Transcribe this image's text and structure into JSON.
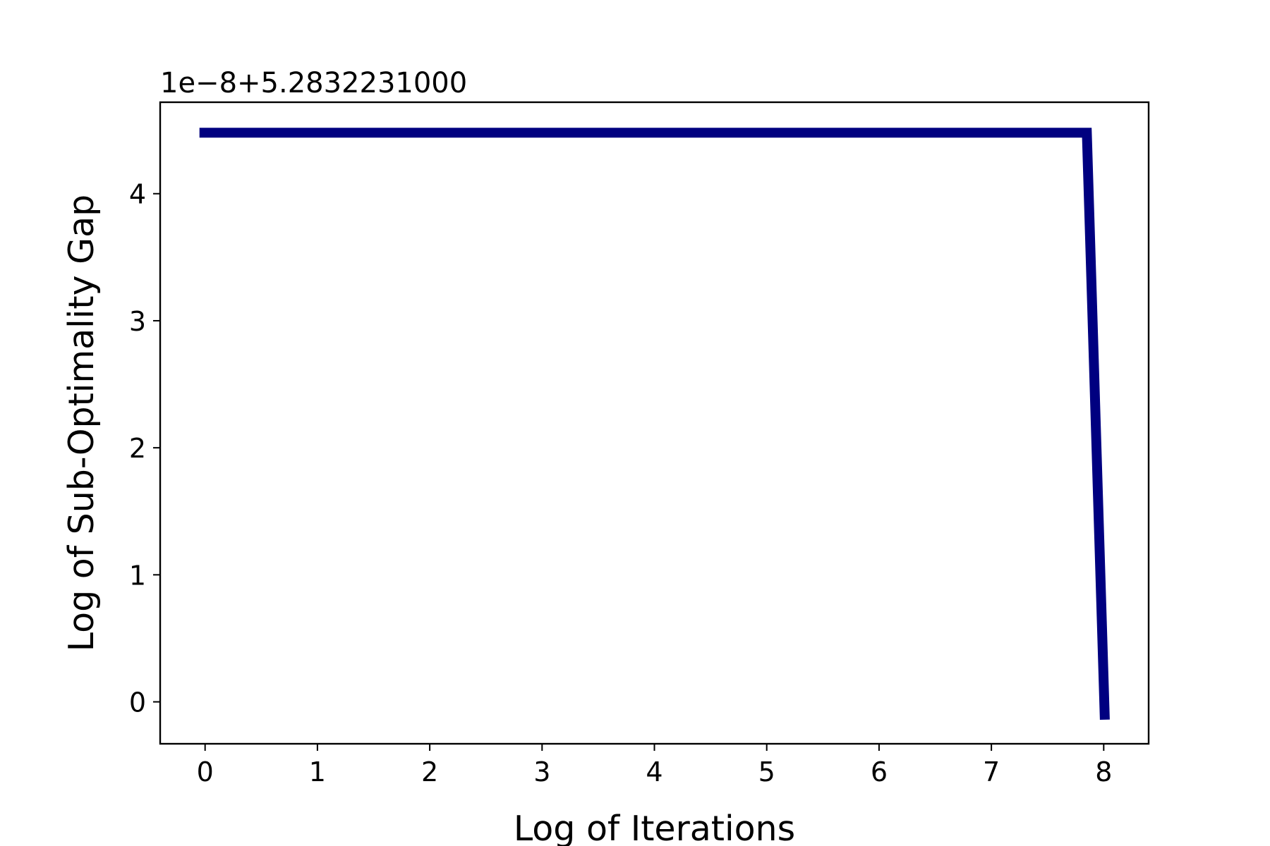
{
  "chart_data": {
    "type": "line",
    "title": "",
    "xlabel": "Log of Iterations",
    "ylabel": "Log of Sub-Optimality Gap",
    "y_offset_text": "1e−8+5.2832231000",
    "xlim": [
      -0.4,
      8.4
    ],
    "ylim": [
      -0.33,
      4.72
    ],
    "xticks": [
      0,
      1,
      2,
      3,
      4,
      5,
      6,
      7,
      8
    ],
    "yticks": [
      0,
      1,
      2,
      3,
      4
    ],
    "grid": false,
    "series": [
      {
        "color": "#000080",
        "x": [
          -0.05,
          1,
          2,
          3,
          4,
          5,
          6,
          7,
          7.85,
          8.01
        ],
        "y": [
          4.48,
          4.48,
          4.48,
          4.48,
          4.48,
          4.48,
          4.48,
          4.48,
          4.48,
          -0.14
        ]
      }
    ]
  }
}
